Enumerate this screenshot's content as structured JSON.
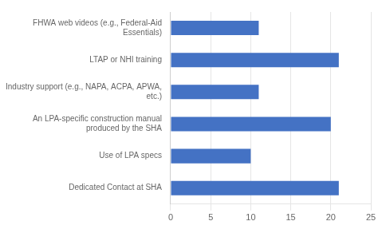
{
  "chart_data": {
    "type": "bar",
    "orientation": "horizontal",
    "categories": [
      "Dedicated Contact at SHA",
      "Use of LPA specs",
      "An LPA-specific construction manual\nproduced by the SHA",
      "Industry support (e.g., NAPA, ACPA, APWA,\netc.)",
      "LTAP or NHI training",
      "FHWA web videos (e.g., Federal-Aid\nEssentials)"
    ],
    "values": [
      21,
      10,
      20,
      11,
      21,
      11
    ],
    "color": "#4472C4",
    "xlim": [
      0,
      25
    ],
    "xticks": [
      0,
      5,
      10,
      15,
      20,
      25
    ],
    "grid": true
  }
}
